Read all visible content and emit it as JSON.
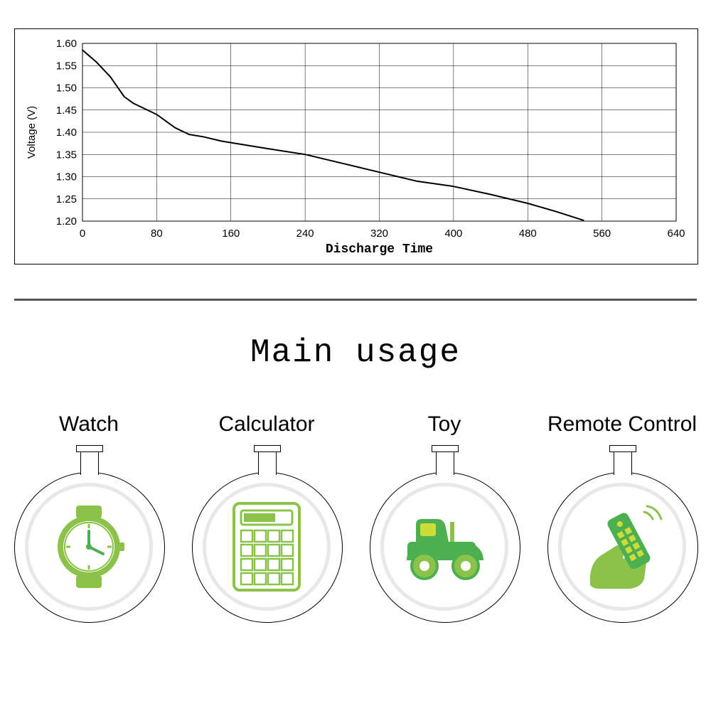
{
  "chart": {
    "type": "line",
    "xlabel": "Discharge Time",
    "ylabel": "Voltage (V)",
    "label_font": "monospace",
    "xlabel_fontsize": 18,
    "ylabel_fontsize": 15,
    "tick_fontsize": 15,
    "background_color": "#ffffff",
    "border_color": "#000000",
    "grid_color": "#000000",
    "grid_width": 0.5,
    "line_color": "#000000",
    "line_width": 2,
    "xlim": [
      0,
      640
    ],
    "ylim": [
      1.2,
      1.6
    ],
    "xtick_step": 80,
    "xticks": [
      0,
      80,
      160,
      240,
      320,
      400,
      480,
      560,
      640
    ],
    "yticks": [
      1.2,
      1.25,
      1.3,
      1.35,
      1.4,
      1.45,
      1.5,
      1.55,
      1.6
    ],
    "y_grid_at": [
      1.25,
      1.3,
      1.35,
      1.4,
      1.45,
      1.5,
      1.55,
      1.6
    ],
    "x_grid_at": [
      80,
      160,
      240,
      320,
      400,
      480,
      560,
      640
    ],
    "data": [
      {
        "x": 0,
        "y": 1.585
      },
      {
        "x": 15,
        "y": 1.558
      },
      {
        "x": 30,
        "y": 1.525
      },
      {
        "x": 45,
        "y": 1.48
      },
      {
        "x": 55,
        "y": 1.465
      },
      {
        "x": 80,
        "y": 1.44
      },
      {
        "x": 100,
        "y": 1.41
      },
      {
        "x": 115,
        "y": 1.395
      },
      {
        "x": 130,
        "y": 1.39
      },
      {
        "x": 150,
        "y": 1.38
      },
      {
        "x": 200,
        "y": 1.363
      },
      {
        "x": 240,
        "y": 1.35
      },
      {
        "x": 280,
        "y": 1.33
      },
      {
        "x": 320,
        "y": 1.31
      },
      {
        "x": 360,
        "y": 1.29
      },
      {
        "x": 400,
        "y": 1.278
      },
      {
        "x": 440,
        "y": 1.26
      },
      {
        "x": 480,
        "y": 1.24
      },
      {
        "x": 510,
        "y": 1.222
      },
      {
        "x": 540,
        "y": 1.202
      }
    ]
  },
  "divider_color": "#555555",
  "main_title": "Main usage",
  "main_title_fontsize": 46,
  "usage": {
    "items": [
      {
        "label": "Watch",
        "icon": "watch-icon"
      },
      {
        "label": "Calculator",
        "icon": "calculator-icon"
      },
      {
        "label": "Toy",
        "icon": "toy-icon"
      },
      {
        "label": "Remote Control",
        "icon": "remote-icon"
      }
    ],
    "label_fontsize": 30,
    "icon_color_primary": "#8bc34a",
    "icon_color_secondary": "#4caf50",
    "icon_color_accent": "#cddc39",
    "flask_border_color": "#000000",
    "flask_inner_ring_color": "#e8e8e8"
  }
}
